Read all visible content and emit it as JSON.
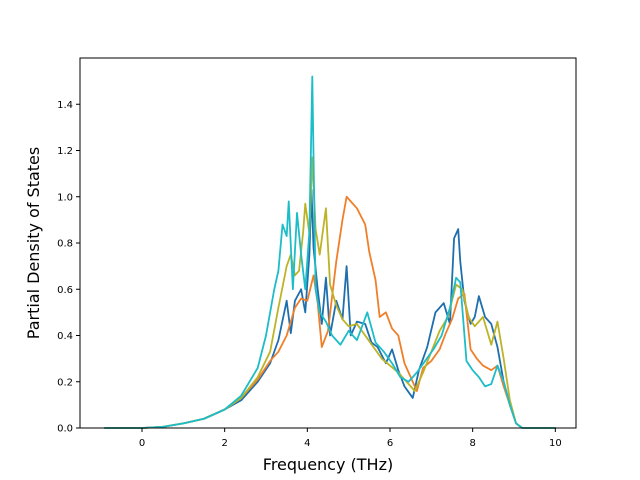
{
  "chart_data": {
    "type": "line",
    "title": "",
    "xlabel": "Frequency (THz)",
    "ylabel": "Partial Density of States",
    "xlim": [
      -1.5,
      10.5
    ],
    "ylim": [
      0.0,
      1.6
    ],
    "x_ticks": [
      0,
      2,
      4,
      6,
      8,
      10
    ],
    "x_tick_labels": [
      "0",
      "2",
      "4",
      "6",
      "8",
      "10"
    ],
    "y_ticks": [
      0.0,
      0.2,
      0.4,
      0.6,
      0.8,
      1.0,
      1.2,
      1.4
    ],
    "y_tick_labels": [
      "0.0",
      "0.2",
      "0.4",
      "0.6",
      "0.8",
      "1.0",
      "1.2",
      "1.4"
    ],
    "grid": false,
    "legend": "none",
    "series": [
      {
        "color": "#1f6fae",
        "points": [
          [
            -0.9,
            0
          ],
          [
            0,
            0
          ],
          [
            0.5,
            0.005
          ],
          [
            1.0,
            0.02
          ],
          [
            1.5,
            0.04
          ],
          [
            2.0,
            0.08
          ],
          [
            2.4,
            0.12
          ],
          [
            2.8,
            0.2
          ],
          [
            3.1,
            0.28
          ],
          [
            3.3,
            0.38
          ],
          [
            3.5,
            0.55
          ],
          [
            3.6,
            0.41
          ],
          [
            3.7,
            0.55
          ],
          [
            3.85,
            0.6
          ],
          [
            3.95,
            0.5
          ],
          [
            4.05,
            0.75
          ],
          [
            4.1,
            1.03
          ],
          [
            4.15,
            0.78
          ],
          [
            4.25,
            0.6
          ],
          [
            4.35,
            0.45
          ],
          [
            4.45,
            0.65
          ],
          [
            4.55,
            0.4
          ],
          [
            4.7,
            0.55
          ],
          [
            4.85,
            0.47
          ],
          [
            4.95,
            0.7
          ],
          [
            5.05,
            0.4
          ],
          [
            5.2,
            0.46
          ],
          [
            5.4,
            0.45
          ],
          [
            5.55,
            0.37
          ],
          [
            5.7,
            0.35
          ],
          [
            5.9,
            0.28
          ],
          [
            6.05,
            0.34
          ],
          [
            6.2,
            0.25
          ],
          [
            6.35,
            0.18
          ],
          [
            6.55,
            0.13
          ],
          [
            6.7,
            0.25
          ],
          [
            6.9,
            0.35
          ],
          [
            7.1,
            0.5
          ],
          [
            7.3,
            0.54
          ],
          [
            7.45,
            0.45
          ],
          [
            7.55,
            0.82
          ],
          [
            7.65,
            0.86
          ],
          [
            7.7,
            0.72
          ],
          [
            7.8,
            0.55
          ],
          [
            7.95,
            0.45
          ],
          [
            8.05,
            0.48
          ],
          [
            8.15,
            0.57
          ],
          [
            8.3,
            0.48
          ],
          [
            8.45,
            0.45
          ],
          [
            8.6,
            0.35
          ],
          [
            8.75,
            0.2
          ],
          [
            8.9,
            0.1
          ],
          [
            9.05,
            0.02
          ],
          [
            9.2,
            0
          ],
          [
            10.0,
            0
          ]
        ]
      },
      {
        "color": "#f07f2a",
        "points": [
          [
            -0.9,
            0
          ],
          [
            0,
            0
          ],
          [
            0.5,
            0.005
          ],
          [
            1.0,
            0.02
          ],
          [
            1.5,
            0.04
          ],
          [
            2.0,
            0.08
          ],
          [
            2.4,
            0.13
          ],
          [
            2.8,
            0.21
          ],
          [
            3.1,
            0.29
          ],
          [
            3.3,
            0.33
          ],
          [
            3.5,
            0.4
          ],
          [
            3.7,
            0.52
          ],
          [
            3.85,
            0.56
          ],
          [
            4.0,
            0.55
          ],
          [
            4.15,
            0.66
          ],
          [
            4.25,
            0.54
          ],
          [
            4.35,
            0.35
          ],
          [
            4.5,
            0.42
          ],
          [
            4.7,
            0.72
          ],
          [
            4.85,
            0.9
          ],
          [
            4.95,
            1.0
          ],
          [
            5.05,
            0.98
          ],
          [
            5.2,
            0.95
          ],
          [
            5.4,
            0.88
          ],
          [
            5.5,
            0.76
          ],
          [
            5.65,
            0.64
          ],
          [
            5.75,
            0.48
          ],
          [
            5.9,
            0.5
          ],
          [
            6.05,
            0.43
          ],
          [
            6.2,
            0.4
          ],
          [
            6.35,
            0.28
          ],
          [
            6.5,
            0.22
          ],
          [
            6.65,
            0.16
          ],
          [
            6.8,
            0.26
          ],
          [
            7.0,
            0.29
          ],
          [
            7.2,
            0.34
          ],
          [
            7.35,
            0.41
          ],
          [
            7.5,
            0.47
          ],
          [
            7.65,
            0.56
          ],
          [
            7.8,
            0.58
          ],
          [
            7.95,
            0.34
          ],
          [
            8.1,
            0.3
          ],
          [
            8.25,
            0.27
          ],
          [
            8.45,
            0.25
          ],
          [
            8.6,
            0.27
          ],
          [
            8.75,
            0.18
          ],
          [
            8.9,
            0.1
          ],
          [
            9.05,
            0.02
          ],
          [
            9.2,
            0
          ],
          [
            10.0,
            0
          ]
        ]
      },
      {
        "color": "#bcb327",
        "points": [
          [
            -0.9,
            0
          ],
          [
            0,
            0
          ],
          [
            0.5,
            0.005
          ],
          [
            1.0,
            0.02
          ],
          [
            1.5,
            0.04
          ],
          [
            2.0,
            0.08
          ],
          [
            2.4,
            0.13
          ],
          [
            2.8,
            0.22
          ],
          [
            3.1,
            0.33
          ],
          [
            3.3,
            0.52
          ],
          [
            3.5,
            0.7
          ],
          [
            3.6,
            0.75
          ],
          [
            3.7,
            0.66
          ],
          [
            3.8,
            0.68
          ],
          [
            3.9,
            0.85
          ],
          [
            3.95,
            0.97
          ],
          [
            4.05,
            0.84
          ],
          [
            4.12,
            1.17
          ],
          [
            4.2,
            0.86
          ],
          [
            4.3,
            0.75
          ],
          [
            4.45,
            0.95
          ],
          [
            4.55,
            0.62
          ],
          [
            4.7,
            0.53
          ],
          [
            4.85,
            0.47
          ],
          [
            5.0,
            0.44
          ],
          [
            5.2,
            0.45
          ],
          [
            5.4,
            0.4
          ],
          [
            5.6,
            0.35
          ],
          [
            5.8,
            0.3
          ],
          [
            6.0,
            0.27
          ],
          [
            6.2,
            0.24
          ],
          [
            6.4,
            0.2
          ],
          [
            6.6,
            0.16
          ],
          [
            6.8,
            0.24
          ],
          [
            7.0,
            0.33
          ],
          [
            7.2,
            0.42
          ],
          [
            7.4,
            0.48
          ],
          [
            7.6,
            0.62
          ],
          [
            7.75,
            0.6
          ],
          [
            7.9,
            0.48
          ],
          [
            8.05,
            0.44
          ],
          [
            8.25,
            0.48
          ],
          [
            8.45,
            0.36
          ],
          [
            8.6,
            0.46
          ],
          [
            8.75,
            0.3
          ],
          [
            8.9,
            0.12
          ],
          [
            9.05,
            0.02
          ],
          [
            9.2,
            0
          ],
          [
            10.0,
            0
          ]
        ]
      },
      {
        "color": "#1dbdc8",
        "points": [
          [
            -0.9,
            0
          ],
          [
            0,
            0
          ],
          [
            0.5,
            0.005
          ],
          [
            1.0,
            0.02
          ],
          [
            1.5,
            0.04
          ],
          [
            2.0,
            0.08
          ],
          [
            2.4,
            0.14
          ],
          [
            2.8,
            0.26
          ],
          [
            3.0,
            0.4
          ],
          [
            3.2,
            0.6
          ],
          [
            3.3,
            0.68
          ],
          [
            3.4,
            0.88
          ],
          [
            3.5,
            0.83
          ],
          [
            3.55,
            0.98
          ],
          [
            3.65,
            0.6
          ],
          [
            3.75,
            0.93
          ],
          [
            3.85,
            0.75
          ],
          [
            3.95,
            0.6
          ],
          [
            4.05,
            0.85
          ],
          [
            4.12,
            1.52
          ],
          [
            4.2,
            0.6
          ],
          [
            4.3,
            0.5
          ],
          [
            4.45,
            0.46
          ],
          [
            4.6,
            0.4
          ],
          [
            4.8,
            0.36
          ],
          [
            5.0,
            0.42
          ],
          [
            5.2,
            0.38
          ],
          [
            5.45,
            0.5
          ],
          [
            5.65,
            0.37
          ],
          [
            5.85,
            0.33
          ],
          [
            6.05,
            0.28
          ],
          [
            6.25,
            0.22
          ],
          [
            6.45,
            0.2
          ],
          [
            6.65,
            0.24
          ],
          [
            6.85,
            0.29
          ],
          [
            7.05,
            0.34
          ],
          [
            7.25,
            0.4
          ],
          [
            7.45,
            0.52
          ],
          [
            7.6,
            0.65
          ],
          [
            7.7,
            0.63
          ],
          [
            7.85,
            0.29
          ],
          [
            8.0,
            0.25
          ],
          [
            8.15,
            0.22
          ],
          [
            8.3,
            0.18
          ],
          [
            8.45,
            0.19
          ],
          [
            8.6,
            0.27
          ],
          [
            8.75,
            0.2
          ],
          [
            8.9,
            0.1
          ],
          [
            9.05,
            0.02
          ],
          [
            9.2,
            0
          ],
          [
            10.0,
            0
          ]
        ]
      }
    ]
  }
}
